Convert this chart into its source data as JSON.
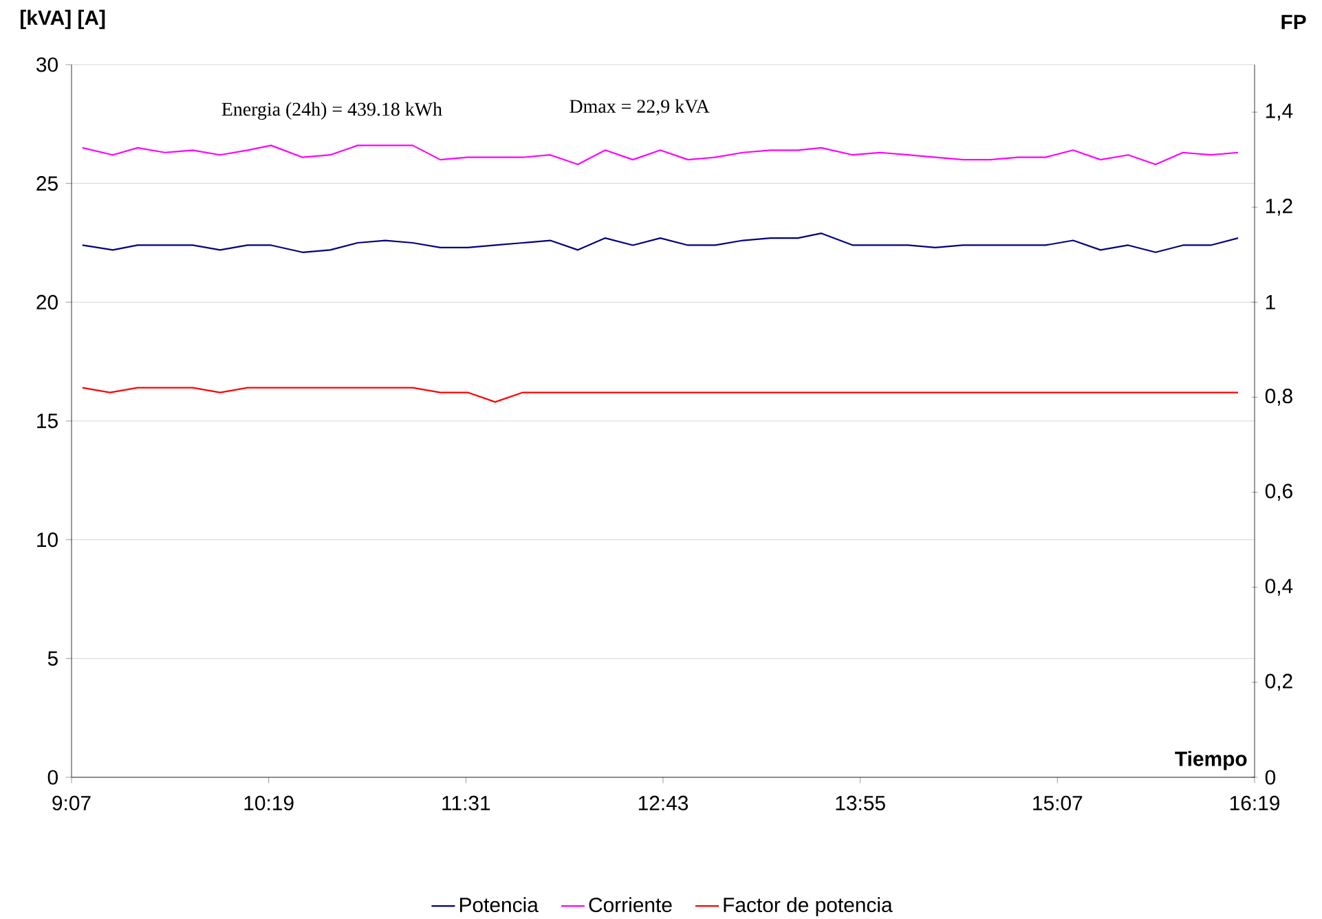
{
  "chart_data": {
    "type": "line",
    "ylabel": "[kVA] [A]",
    "y2label": "FP",
    "xlabel": "Tiempo",
    "annotations": [
      "Energia (24h) = 439.18 kWh",
      "Dmax = 22,9 kVA"
    ],
    "x": [
      9.183,
      9.368,
      9.519,
      9.686,
      9.854,
      10.021,
      10.188,
      10.331,
      10.523,
      10.691,
      10.858,
      11.026,
      11.193,
      11.361,
      11.528,
      11.695,
      11.863,
      12.03,
      12.198,
      12.365,
      12.533,
      12.7,
      12.868,
      13.035,
      13.202,
      13.37,
      13.537,
      13.68,
      13.872,
      14.039,
      14.207,
      14.374,
      14.542,
      14.709,
      14.877,
      15.044,
      15.212,
      15.379,
      15.547,
      15.714,
      15.881,
      16.049,
      16.216
    ],
    "series": [
      {
        "name": "Potencia",
        "color": "#000080",
        "values": [
          22.4,
          22.2,
          22.4,
          22.4,
          22.4,
          22.2,
          22.4,
          22.4,
          22.1,
          22.2,
          22.5,
          22.6,
          22.5,
          22.3,
          22.3,
          22.4,
          22.5,
          22.6,
          22.2,
          22.7,
          22.4,
          22.7,
          22.4,
          22.4,
          22.6,
          22.7,
          22.7,
          22.9,
          22.4,
          22.4,
          22.4,
          22.3,
          22.4,
          22.4,
          22.4,
          22.4,
          22.6,
          22.2,
          22.4,
          22.1,
          22.4,
          22.4,
          22.7
        ]
      },
      {
        "name": "Corriente",
        "color": "#ff00ff",
        "values": [
          26.5,
          26.2,
          26.5,
          26.3,
          26.4,
          26.2,
          26.4,
          26.6,
          26.1,
          26.2,
          26.6,
          26.6,
          26.6,
          26.0,
          26.1,
          26.1,
          26.1,
          26.2,
          25.8,
          26.4,
          26.0,
          26.4,
          26.0,
          26.1,
          26.3,
          26.4,
          26.4,
          26.5,
          26.2,
          26.3,
          26.2,
          26.1,
          26.0,
          26.0,
          26.1,
          26.1,
          26.4,
          26.0,
          26.2,
          25.8,
          26.3,
          26.2,
          26.3
        ]
      },
      {
        "name": "Factor de potencia",
        "color": "#ff0000",
        "axis": "y2",
        "x": [
          9.183,
          9.351,
          9.519,
          9.854,
          10.021,
          10.188,
          11.193,
          11.361,
          11.528,
          11.695,
          11.863,
          16.216
        ],
        "values": [
          0.82,
          0.81,
          0.82,
          0.82,
          0.81,
          0.82,
          0.82,
          0.81,
          0.81,
          0.79,
          0.81,
          0.81
        ]
      }
    ],
    "xlim": [
      9.1167,
      16.3167
    ],
    "xticks": [
      {
        "value": 9.1167,
        "label": "9:07"
      },
      {
        "value": 10.3167,
        "label": "10:19"
      },
      {
        "value": 11.5167,
        "label": "11:31"
      },
      {
        "value": 12.7167,
        "label": "12:43"
      },
      {
        "value": 13.9167,
        "label": "13:55"
      },
      {
        "value": 15.1167,
        "label": "15:07"
      },
      {
        "value": 16.3167,
        "label": "16:19"
      }
    ],
    "ylim": [
      0,
      30
    ],
    "yticks": [
      0,
      5,
      10,
      15,
      20,
      25,
      30
    ],
    "y2lim": [
      0,
      1.5
    ],
    "y2ticks": [
      0,
      {
        "value": 0.2,
        "label": "0,2"
      },
      {
        "value": 0.4,
        "label": "0,4"
      },
      {
        "value": 0.6,
        "label": "0,6"
      },
      {
        "value": 0.8,
        "label": "0,8"
      },
      {
        "value": 1,
        "label": "1"
      },
      {
        "value": 1.2,
        "label": "1,2"
      },
      {
        "value": 1.4,
        "label": "1,4"
      }
    ],
    "grid": "y",
    "legend": "bottom",
    "marker": "none",
    "line_style": "solid"
  }
}
